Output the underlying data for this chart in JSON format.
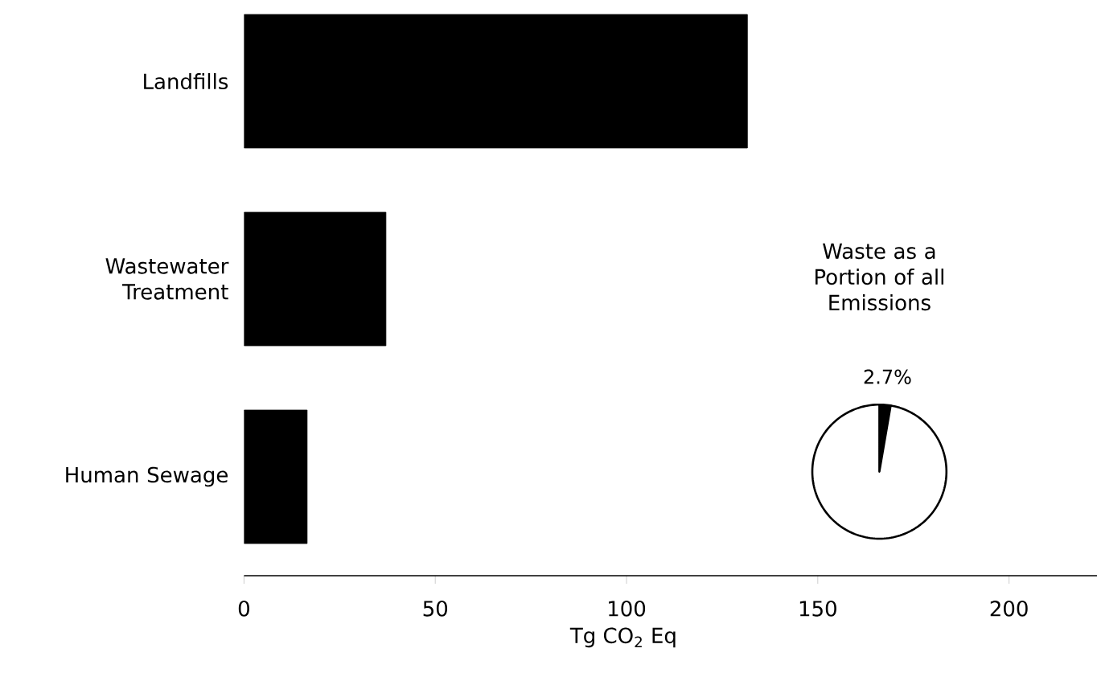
{
  "chart_data": [
    {
      "type": "bar",
      "orientation": "horizontal",
      "categories": [
        "Landfills",
        "Wastewater Treatment",
        "Human Sewage"
      ],
      "values": [
        131.6,
        37.1,
        16.5
      ],
      "color": "#000000",
      "xlim": [
        0,
        223
      ],
      "xticks": [
        0,
        50,
        100,
        150,
        200
      ],
      "xlabel": "Tg CO$_{2}$ Eq"
    },
    {
      "type": "pie",
      "title": "Waste as a Portion of all Emissions",
      "categories": [
        null,
        null
      ],
      "values": [
        2.7,
        97.3
      ],
      "colors": [
        "#000000",
        "#ffffff"
      ],
      "value_labels": [
        "2.7%",
        null
      ]
    }
  ]
}
